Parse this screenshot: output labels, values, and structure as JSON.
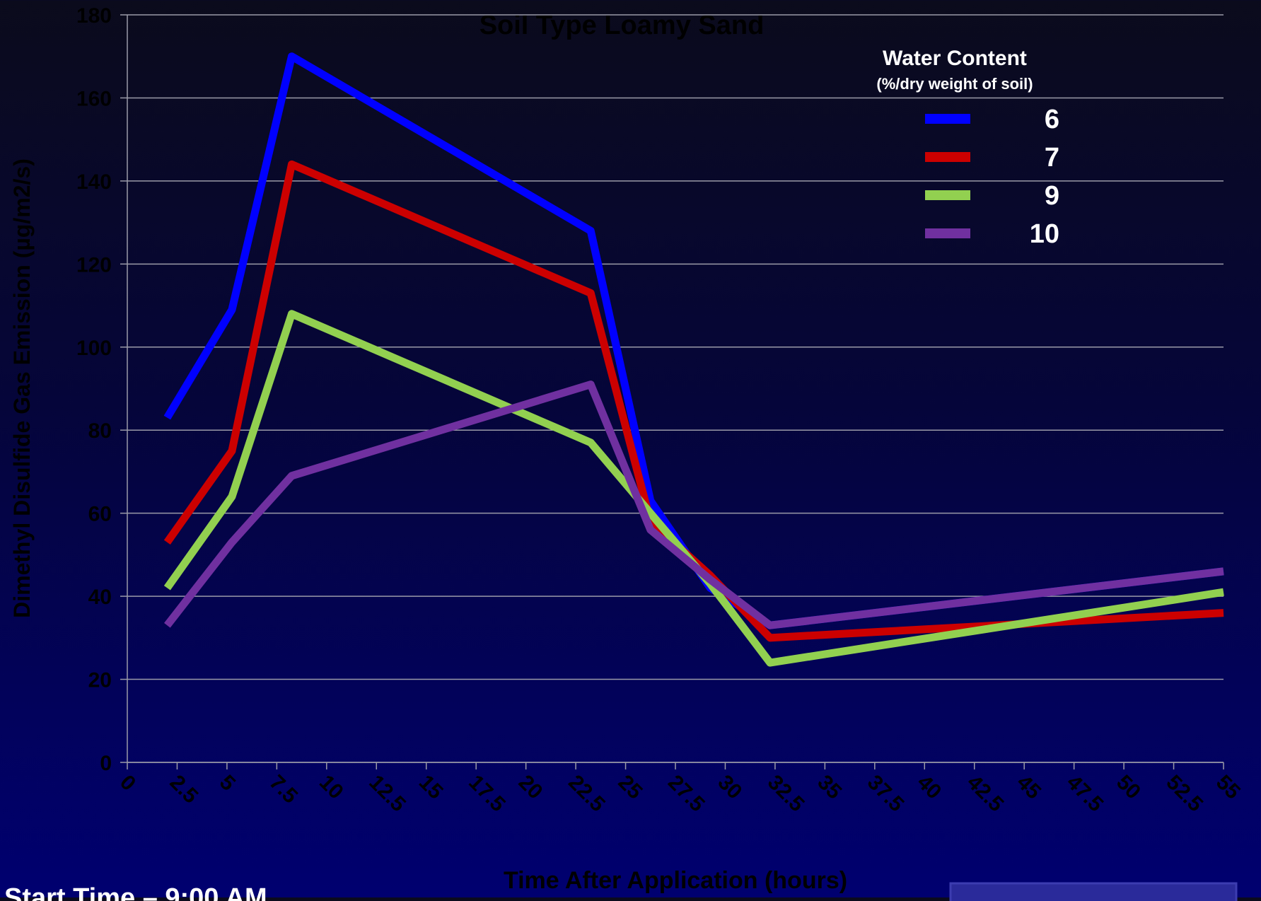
{
  "chart_data": {
    "type": "line",
    "title": "Soil Type Loamy Sand",
    "x_label": "Time After Application (hours)",
    "y_label": "Dimethyl Disulfide Gas Emission (µg/m2/s)",
    "legend_title": "Water Content",
    "legend_subtitle": "(%/dry weight of soil)",
    "note": "Start Time – 9:00 AM",
    "x": [
      2,
      5.25,
      8.25,
      23.25,
      26.25,
      29.25,
      32.25,
      55
    ],
    "series": [
      {
        "name": "6",
        "color": "#0000ff",
        "values": [
          83,
          109,
          170,
          128,
          63,
          42,
          33,
          46
        ]
      },
      {
        "name": "7",
        "color": "#cc0000",
        "values": [
          53,
          75,
          144,
          113,
          58,
          45,
          30,
          36
        ]
      },
      {
        "name": "9",
        "color": "#92d050",
        "values": [
          42,
          64,
          108,
          77,
          60,
          43,
          24,
          41
        ]
      },
      {
        "name": "10",
        "color": "#7030a0",
        "values": [
          33,
          53,
          69,
          91,
          56,
          44,
          33,
          46
        ]
      }
    ],
    "xlim": [
      0,
      55
    ],
    "xticks": [
      0,
      2.5,
      5,
      7.5,
      10,
      12.5,
      15,
      17.5,
      20,
      22.5,
      25,
      27.5,
      30,
      32.5,
      35,
      37.5,
      40,
      42.5,
      45,
      47.5,
      50,
      52.5,
      55
    ],
    "ylim": [
      0,
      180
    ],
    "yticks": [
      0,
      20,
      40,
      60,
      80,
      100,
      120,
      140,
      160,
      180
    ],
    "grid": true,
    "legend": "upper right"
  }
}
